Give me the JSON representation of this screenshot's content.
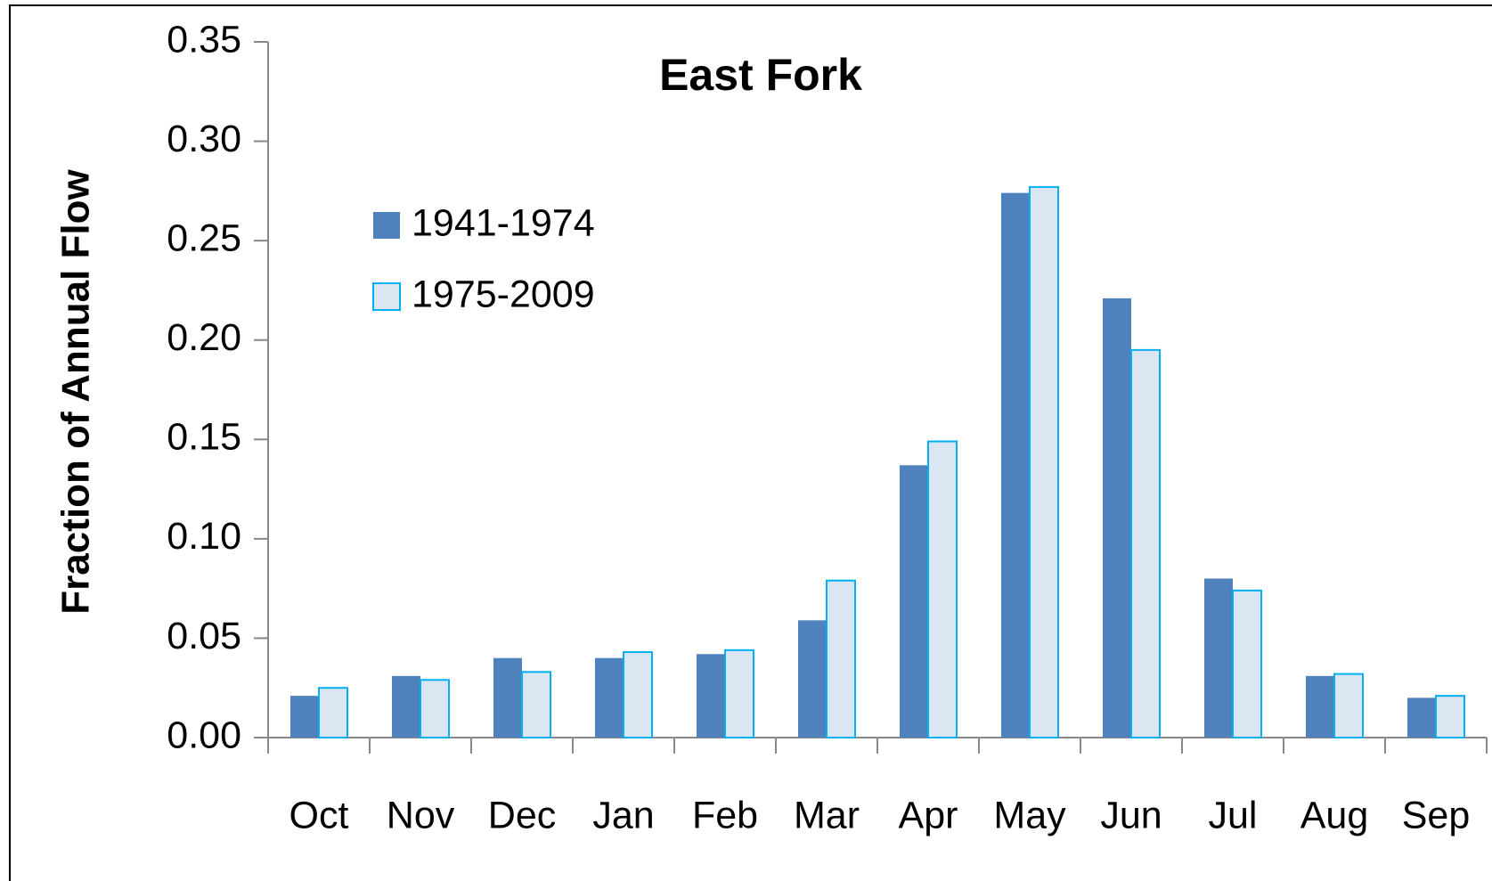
{
  "chart_data": {
    "type": "bar",
    "title": "East Fork",
    "ylabel": "Fraction of Annual Flow",
    "categories": [
      "Oct",
      "Nov",
      "Dec",
      "Jan",
      "Feb",
      "Mar",
      "Apr",
      "May",
      "Jun",
      "Jul",
      "Aug",
      "Sep"
    ],
    "series": [
      {
        "name": "1941-1974",
        "color": "#4f81bd",
        "values": [
          0.021,
          0.031,
          0.04,
          0.04,
          0.042,
          0.059,
          0.137,
          0.274,
          0.221,
          0.08,
          0.031,
          0.02
        ]
      },
      {
        "name": "1975-2009",
        "color": "#dce6f2",
        "edgecolor": "#00b0f0",
        "values": [
          0.025,
          0.029,
          0.033,
          0.043,
          0.044,
          0.079,
          0.149,
          0.277,
          0.195,
          0.074,
          0.032,
          0.021
        ]
      }
    ],
    "ylim": [
      0,
      0.35
    ],
    "yticks": [
      {
        "value": 0,
        "label": "0.00"
      },
      {
        "value": 0.05,
        "label": "0.05"
      },
      {
        "value": 0.1,
        "label": "0.10"
      },
      {
        "value": 0.15,
        "label": "0.15"
      },
      {
        "value": 0.2,
        "label": "0.20"
      },
      {
        "value": 0.25,
        "label": "0.25"
      },
      {
        "value": 0.3,
        "label": "0.30"
      },
      {
        "value": 0.35,
        "label": "0.35"
      }
    ],
    "grid": false,
    "legend": "upper left"
  }
}
